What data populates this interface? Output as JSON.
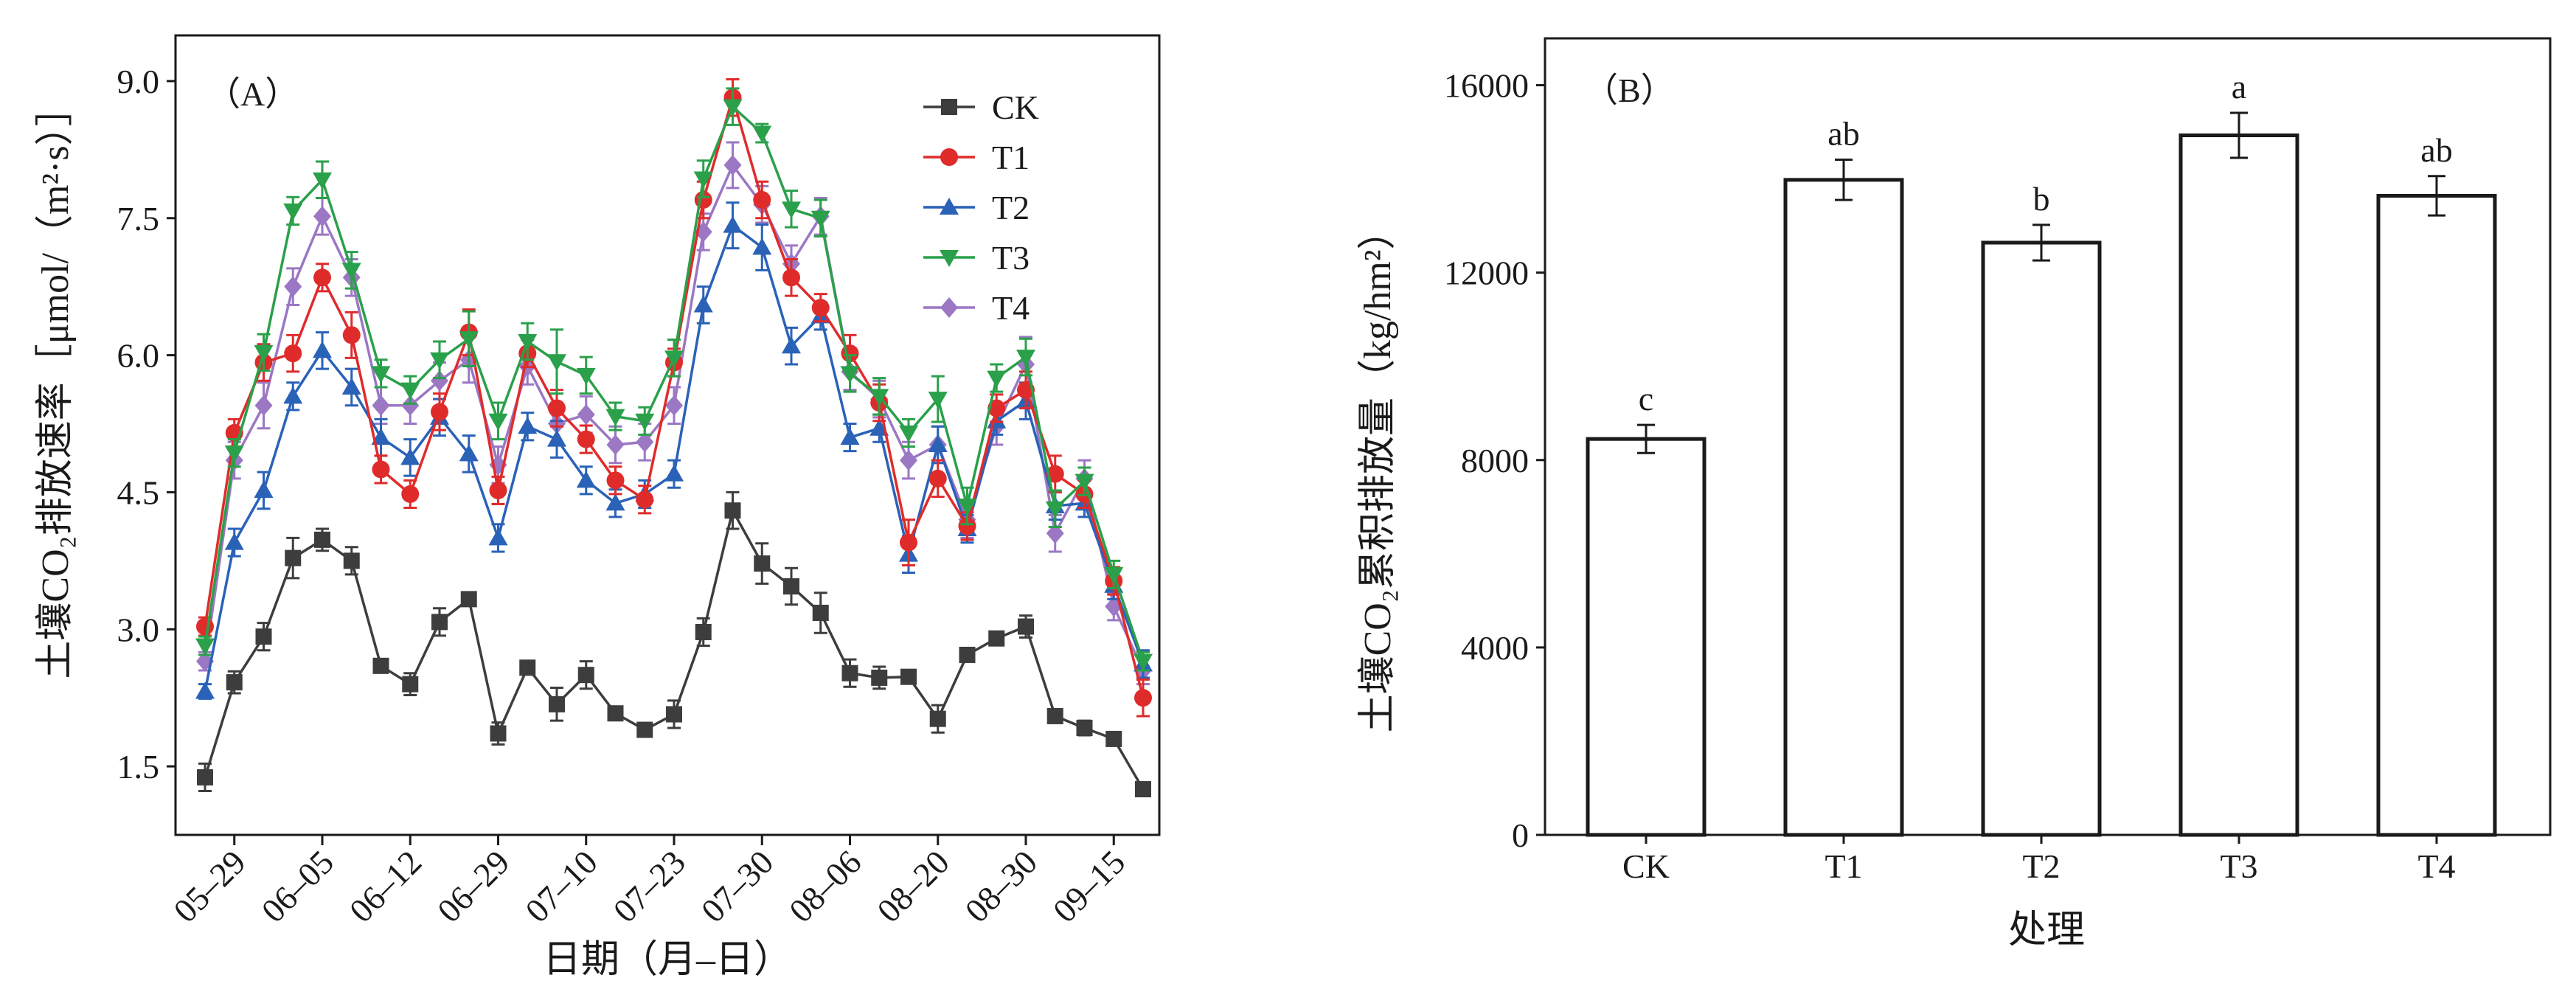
{
  "chart_data": [
    {
      "type": "line",
      "panel_label": "（A）",
      "xlabel": "日期（月–日）",
      "ylabel": "土壤CO₂排放速率［μmol/（m²·s）］",
      "ylim": [
        0.75,
        9.5
      ],
      "yticks": [
        "1.5",
        "3.0",
        "4.5",
        "6.0",
        "7.5",
        "9.0"
      ],
      "xticks": [
        "05–29",
        "06–05",
        "06–12",
        "06–29",
        "07–10",
        "07–23",
        "07–30",
        "08–06",
        "08–20",
        "08–30",
        "09–15"
      ],
      "legend_position": "top-right",
      "grid": false,
      "series": [
        {
          "name": "CK",
          "color": "#3d3d3d",
          "marker": "square",
          "values": [
            1.38,
            2.42,
            2.92,
            3.78,
            3.98,
            3.75,
            2.6,
            2.4,
            3.08,
            3.33,
            1.86,
            2.58,
            2.18,
            2.5,
            2.08,
            1.9,
            2.07,
            2.97,
            4.3,
            3.72,
            3.47,
            3.18,
            2.52,
            2.47,
            2.48,
            2.02,
            2.72,
            2.9,
            3.03,
            2.05,
            1.92,
            1.8,
            1.25
          ],
          "errors": [
            0.15,
            0.12,
            0.15,
            0.22,
            0.12,
            0.15,
            0.05,
            0.12,
            0.15,
            0.05,
            0.12,
            0.05,
            0.18,
            0.15,
            0.05,
            0.05,
            0.15,
            0.15,
            0.2,
            0.22,
            0.2,
            0.22,
            0.15,
            0.12,
            0.05,
            0.15,
            0.05,
            0.05,
            0.12,
            0.05,
            0.08,
            0.05,
            0.05
          ]
        },
        {
          "name": "T1",
          "color": "#e02b2b",
          "marker": "circle",
          "values": [
            3.03,
            5.15,
            5.92,
            6.02,
            6.85,
            6.22,
            4.75,
            4.48,
            5.38,
            6.25,
            4.52,
            6.02,
            5.42,
            5.08,
            4.63,
            4.42,
            5.92,
            7.7,
            8.82,
            7.7,
            6.85,
            6.52,
            6.02,
            5.48,
            3.95,
            4.65,
            4.13,
            5.42,
            5.62,
            4.7,
            4.48,
            3.53,
            2.25
          ],
          "errors": [
            0.1,
            0.15,
            0.2,
            0.2,
            0.15,
            0.25,
            0.15,
            0.15,
            0.2,
            0.25,
            0.15,
            0.15,
            0.2,
            0.15,
            0.15,
            0.15,
            0.15,
            0.2,
            0.2,
            0.2,
            0.2,
            0.15,
            0.2,
            0.2,
            0.25,
            0.2,
            0.15,
            0.15,
            0.2,
            0.2,
            0.15,
            0.15,
            0.2
          ]
        },
        {
          "name": "T2",
          "color": "#2a62b8",
          "marker": "triangle-up",
          "values": [
            2.32,
            3.95,
            4.52,
            5.55,
            6.05,
            5.65,
            5.1,
            4.88,
            5.32,
            4.92,
            4.0,
            5.22,
            5.08,
            4.63,
            4.38,
            4.48,
            4.7,
            6.55,
            7.42,
            7.18,
            6.1,
            6.43,
            5.1,
            5.2,
            3.82,
            5.02,
            4.1,
            5.28,
            5.5,
            4.35,
            4.38,
            3.48,
            2.62
          ],
          "errors": [
            0.08,
            0.15,
            0.2,
            0.15,
            0.2,
            0.2,
            0.2,
            0.2,
            0.2,
            0.2,
            0.15,
            0.15,
            0.2,
            0.15,
            0.15,
            0.15,
            0.15,
            0.2,
            0.25,
            0.25,
            0.2,
            0.15,
            0.15,
            0.15,
            0.2,
            0.2,
            0.15,
            0.15,
            0.2,
            0.15,
            0.15,
            0.15,
            0.15
          ]
        },
        {
          "name": "T3",
          "color": "#2aa04a",
          "marker": "triangle-down",
          "values": [
            2.82,
            4.93,
            6.03,
            7.58,
            7.92,
            6.93,
            5.8,
            5.62,
            5.95,
            6.18,
            5.28,
            6.15,
            5.93,
            5.78,
            5.33,
            5.28,
            5.97,
            7.93,
            8.72,
            8.43,
            7.6,
            7.5,
            5.8,
            5.55,
            5.15,
            5.52,
            4.35,
            5.75,
            5.98,
            4.32,
            4.62,
            3.6,
            2.65
          ],
          "errors": [
            0.1,
            0.15,
            0.2,
            0.15,
            0.2,
            0.2,
            0.15,
            0.15,
            0.2,
            0.3,
            0.2,
            0.2,
            0.35,
            0.2,
            0.15,
            0.15,
            0.2,
            0.2,
            0.2,
            0.1,
            0.2,
            0.2,
            0.2,
            0.2,
            0.15,
            0.25,
            0.2,
            0.15,
            0.2,
            0.2,
            0.15,
            0.15,
            0.1
          ]
        },
        {
          "name": "T4",
          "color": "#9b77c4",
          "marker": "diamond",
          "values": [
            2.65,
            4.85,
            5.45,
            6.75,
            7.52,
            6.85,
            5.45,
            5.45,
            5.72,
            5.95,
            4.8,
            5.88,
            5.25,
            5.35,
            5.02,
            5.05,
            5.45,
            7.35,
            8.08,
            7.65,
            7.0,
            7.52,
            5.82,
            5.52,
            4.85,
            5.02,
            4.2,
            5.22,
            5.9,
            4.05,
            4.65,
            3.25,
            2.55
          ],
          "errors": [
            0.1,
            0.2,
            0.25,
            0.2,
            0.2,
            0.2,
            0.2,
            0.2,
            0.2,
            0.25,
            0.2,
            0.2,
            0.2,
            0.2,
            0.2,
            0.2,
            0.2,
            0.2,
            0.25,
            0.2,
            0.2,
            0.2,
            0.2,
            0.2,
            0.2,
            0.2,
            0.2,
            0.2,
            0.3,
            0.2,
            0.2,
            0.15,
            0.15
          ]
        }
      ]
    },
    {
      "type": "bar",
      "panel_label": "（B）",
      "xlabel": "处理",
      "ylabel": "土壤CO₂累积排放量（kg/hm²）",
      "ylim": [
        0,
        17000
      ],
      "yticks": [
        "0",
        "4000",
        "8000",
        "12000",
        "16000"
      ],
      "categories": [
        "CK",
        "T1",
        "T2",
        "T3",
        "T4"
      ],
      "values": [
        8450,
        13980,
        12640,
        14930,
        13640
      ],
      "errors": [
        300,
        430,
        380,
        480,
        420
      ],
      "significance": [
        "c",
        "ab",
        "b",
        "a",
        "ab"
      ],
      "grid": false
    }
  ]
}
